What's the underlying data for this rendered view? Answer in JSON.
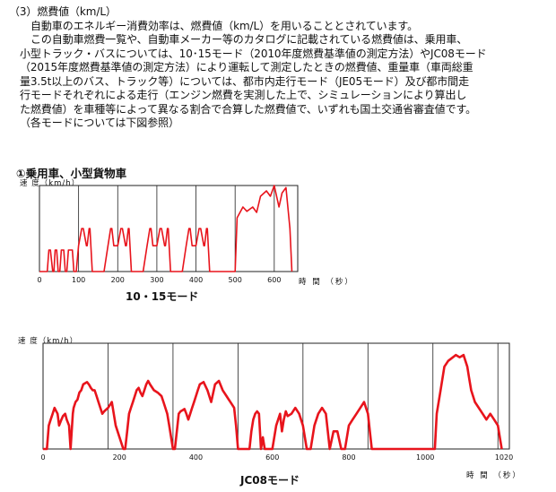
{
  "text": {
    "heading": "（3）燃費値（km/L）",
    "lines": [
      "自動車のエネルギー消費効率は、燃費値（km/L）を用いることとされています。",
      "この自動車燃費一覧や、自動車メーカー等のカタログに記載されている燃費値は、乗用車、",
      "小型トラック・バスについては、10･15モード（2010年度燃費基準値の測定方法）やJC08モード",
      "（2015年度燃費基準値の測定方法）により運転して測定したときの燃費値、重量車（車両総重",
      "量3.5t以上のバス、トラック等）については、都市内走行モード（JE05モード）及び都市間走",
      "行モードそれぞれによる走行（エンジン燃費を実測した上で、シミュレーションにより算出し",
      "た燃費値）を車種等によって異なる割合で合算した燃費値で、いずれも国土交通省審査値です。"
    ],
    "note": "（各モードについては下図参照）",
    "subheading": "①乗用車、小型貨物車"
  },
  "colors": {
    "line": "#e8141c",
    "grid": "#222222"
  },
  "chart_data": [
    {
      "type": "line",
      "title": "10・15モード",
      "xlabel": "時 間 （秒）",
      "ylabel": "速 度（km/h）",
      "xlim": [
        0,
        660
      ],
      "ylim": [
        0,
        80
      ],
      "grid": true,
      "x_ticks": [
        "0",
        "100",
        "200",
        "300",
        "400",
        "500",
        "600"
      ],
      "series": [
        {
          "x": [
            0,
            20,
            24,
            28,
            34,
            37,
            40,
            44,
            48,
            52,
            56,
            62,
            66,
            70,
            74,
            84,
            88,
            94,
            100,
            108,
            112,
            120,
            122,
            127,
            129,
            135,
            160,
            165,
            175,
            182,
            185,
            190,
            200,
            208,
            212,
            220,
            222,
            227,
            229,
            235,
            260,
            265,
            275,
            282,
            285,
            290,
            300,
            308,
            312,
            320,
            322,
            327,
            329,
            335,
            360,
            365,
            375,
            382,
            385,
            390,
            400,
            408,
            412,
            420,
            422,
            427,
            429,
            435,
            460,
            468,
            475,
            480,
            490,
            500,
            505,
            520,
            530,
            545,
            555,
            565,
            580,
            590,
            600,
            612,
            620,
            630,
            640,
            645
          ],
          "y": [
            0,
            0,
            20,
            20,
            0,
            0,
            20,
            20,
            0,
            0,
            20,
            20,
            0,
            0,
            20,
            20,
            0,
            0,
            24,
            40,
            40,
            24,
            24,
            40,
            40,
            0,
            0,
            0,
            24,
            40,
            40,
            24,
            24,
            40,
            40,
            24,
            24,
            40,
            40,
            0,
            0,
            0,
            24,
            40,
            40,
            24,
            24,
            40,
            40,
            24,
            24,
            40,
            40,
            0,
            0,
            0,
            24,
            40,
            40,
            24,
            24,
            40,
            40,
            24,
            24,
            40,
            40,
            0,
            0,
            0,
            0,
            0,
            0,
            0,
            50,
            60,
            56,
            60,
            55,
            70,
            75,
            70,
            80,
            60,
            73,
            78,
            40,
            0
          ]
        }
      ]
    },
    {
      "type": "line",
      "title": "JC08モード",
      "xlabel": "時 間 （秒）",
      "ylabel": "速 度（km/h）",
      "xlim": [
        0,
        1220
      ],
      "ylim": [
        0,
        90
      ],
      "grid": true,
      "x_ticks": [
        "0",
        "200",
        "400",
        "600",
        "800",
        "1000",
        "1020"
      ],
      "series": [
        {
          "x": [
            0,
            10,
            15,
            20,
            25,
            30,
            33,
            38,
            42,
            48,
            52,
            58,
            62,
            68,
            72,
            78,
            80,
            85,
            90,
            95,
            100,
            105,
            110,
            115,
            120,
            125,
            130,
            135,
            140,
            145,
            150,
            155,
            160,
            170,
            180,
            190,
            210,
            215,
            220,
            225,
            230,
            235,
            240,
            245,
            250,
            255,
            260,
            265,
            270,
            275,
            280,
            290,
            300,
            310,
            315,
            320,
            325,
            330,
            335,
            340,
            345,
            350,
            355,
            360,
            365,
            370,
            375,
            380,
            385,
            390,
            395,
            400,
            405,
            410,
            420,
            430,
            440,
            450,
            460,
            470,
            480,
            490,
            500,
            505,
            510,
            515,
            520,
            525,
            530,
            535,
            540,
            545,
            550,
            555,
            560,
            565,
            570,
            575,
            580,
            590,
            600,
            610,
            620,
            625,
            630,
            635,
            640,
            650,
            660,
            670,
            680,
            690,
            700,
            710,
            720,
            730,
            740,
            750,
            760,
            770,
            780,
            790,
            800,
            810,
            820,
            830,
            840,
            850,
            860,
            870,
            880,
            890,
            900,
            920,
            940,
            960,
            980,
            1000,
            1010,
            1015,
            1020,
            1025,
            1030,
            1040,
            1050,
            1060,
            1080,
            1090,
            1100,
            1105,
            1110,
            1115,
            1120,
            1125,
            1130,
            1140,
            1150,
            1160,
            1170,
            1180,
            1190,
            1200
          ],
          "y": [
            0,
            0,
            20,
            25,
            30,
            35,
            33,
            30,
            20,
            25,
            28,
            30,
            25,
            20,
            0,
            30,
            35,
            40,
            42,
            48,
            50,
            55,
            56,
            57,
            55,
            52,
            50,
            50,
            45,
            40,
            35,
            30,
            32,
            35,
            40,
            20,
            0,
            0,
            15,
            30,
            35,
            40,
            45,
            50,
            52,
            48,
            45,
            50,
            55,
            58,
            55,
            50,
            48,
            45,
            40,
            35,
            30,
            20,
            10,
            0,
            0,
            15,
            30,
            32,
            33,
            34,
            30,
            25,
            30,
            35,
            40,
            45,
            50,
            55,
            57,
            50,
            40,
            55,
            58,
            50,
            45,
            40,
            35,
            20,
            0,
            0,
            0,
            0,
            0,
            0,
            0,
            15,
            25,
            30,
            32,
            30,
            0,
            10,
            0,
            0,
            0,
            20,
            30,
            15,
            25,
            32,
            28,
            30,
            35,
            30,
            20,
            0,
            0,
            20,
            30,
            35,
            30,
            0,
            15,
            15,
            0,
            0,
            20,
            25,
            30,
            35,
            40,
            30,
            0,
            0,
            0,
            0,
            0,
            0,
            0,
            0,
            0,
            0,
            0,
            0,
            0,
            0,
            30,
            50,
            70,
            75,
            80,
            78,
            80,
            75,
            70,
            60,
            50,
            45,
            40,
            35,
            30,
            25,
            30,
            25,
            20,
            0
          ]
        }
      ]
    }
  ]
}
